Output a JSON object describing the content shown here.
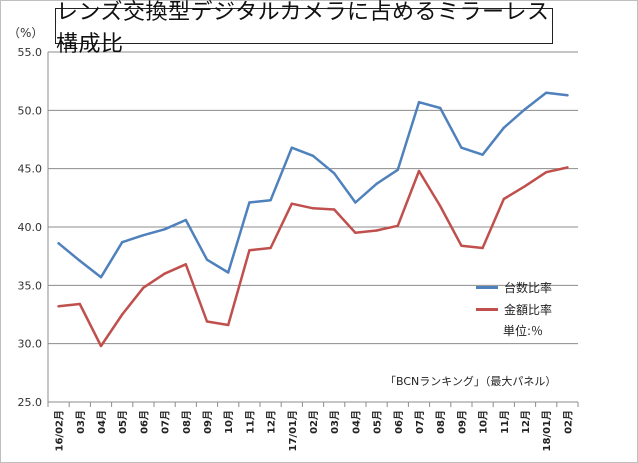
{
  "chart_data": {
    "type": "line",
    "title": "レンズ交換型デジタルカメラに占めるミラーレス構成比",
    "ylabel": "（%）",
    "xlabel": "",
    "ylim": [
      25.0,
      55.0
    ],
    "y_ticks": [
      "25.0",
      "30.0",
      "35.0",
      "40.0",
      "45.0",
      "50.0",
      "55.0"
    ],
    "categories": [
      "16/02月",
      "03月",
      "04月",
      "05月",
      "06月",
      "07月",
      "08月",
      "09月",
      "10月",
      "11月",
      "12月",
      "17/01月",
      "02月",
      "03月",
      "04月",
      "05月",
      "06月",
      "07月",
      "08月",
      "09月",
      "10月",
      "11月",
      "12月",
      "18/01月",
      "02月"
    ],
    "series": [
      {
        "name": "台数比率",
        "color": "#4F81BD",
        "values": [
          38.6,
          37.1,
          35.7,
          38.7,
          39.3,
          39.8,
          40.6,
          37.2,
          36.1,
          42.1,
          42.3,
          46.8,
          46.1,
          44.6,
          42.1,
          43.7,
          44.9,
          50.7,
          50.2,
          46.8,
          46.2,
          48.5,
          50.1,
          51.5,
          51.3
        ]
      },
      {
        "name": "金額比率",
        "color": "#C0504D",
        "values": [
          33.2,
          33.4,
          29.8,
          32.5,
          34.8,
          36.0,
          36.8,
          31.9,
          31.6,
          38.0,
          38.2,
          42.0,
          41.6,
          41.5,
          39.5,
          39.7,
          40.1,
          44.8,
          41.8,
          38.4,
          38.2,
          42.4,
          43.5,
          44.7,
          45.1
        ]
      }
    ],
    "unit_note": "単位:％",
    "source_note": "「BCNランキング」（最大パネル）",
    "legend_position": "right"
  }
}
